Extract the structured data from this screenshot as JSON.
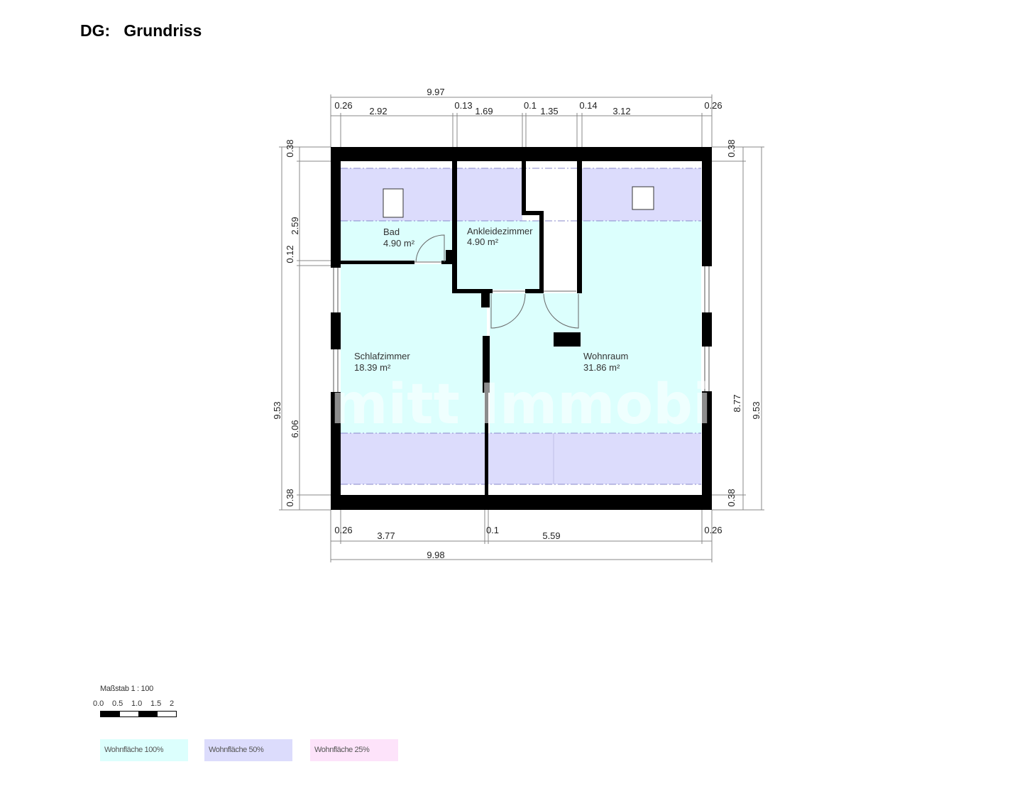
{
  "title": {
    "level": "DG:",
    "name": "Grundriss"
  },
  "dimensions": {
    "top_total": "9.97",
    "top_segments": [
      "0.26",
      "2.92",
      "0.13",
      "1.69",
      "0.1",
      "1.35",
      "0.14",
      "3.12",
      "0.26"
    ],
    "bottom_total": "9.98",
    "bottom_segments": [
      "0.26",
      "3.77",
      "0.1",
      "5.59",
      "0.26"
    ],
    "left_total": "9.53",
    "left_segments": [
      "0.38",
      "2.59",
      "0.12",
      "6.06",
      "0.38"
    ],
    "right_total": "9.53",
    "right_segments": [
      "0.38",
      "8.77",
      "0.38"
    ]
  },
  "rooms": [
    {
      "name": "Bad",
      "area": "4.90 m²"
    },
    {
      "name": "Ankleidezimmer",
      "area": "4.90 m²"
    },
    {
      "name": "Schlafzimmer",
      "area": "18.39 m²"
    },
    {
      "name": "Wohnraum",
      "area": "31.86 m²"
    }
  ],
  "watermark": "Schmitt Immobilien",
  "scale": {
    "label": "Maßstab 1 : 100",
    "ticks": [
      "0.0",
      "0.5",
      "1.0",
      "1.5",
      "2"
    ]
  },
  "legend": [
    {
      "label": "Wohnfläche 100%",
      "color": "#dcfffd"
    },
    {
      "label": "Wohnfläche 50%",
      "color": "#dcdcfc"
    },
    {
      "label": "Wohnfläche 25%",
      "color": "#fde3fa"
    }
  ],
  "colors": {
    "area_100": "#dcfffd",
    "area_50": "#dcdcfc",
    "wall": "#000000"
  }
}
